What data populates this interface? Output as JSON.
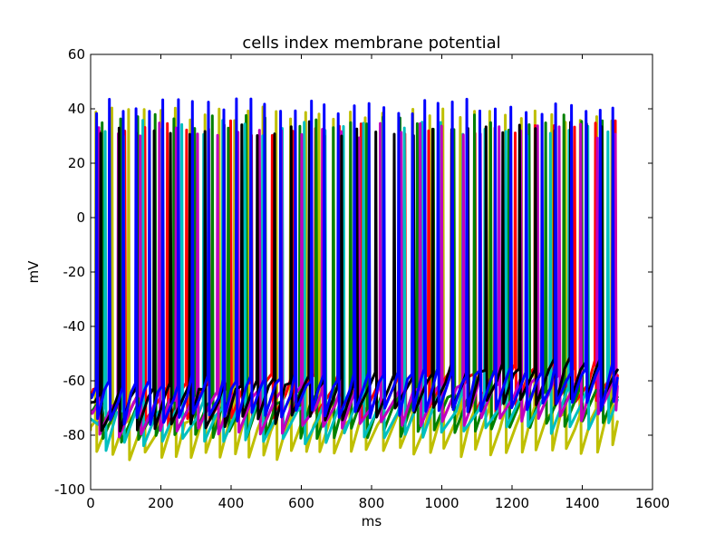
{
  "chart_data": {
    "type": "line",
    "title": "cells index membrane potential",
    "xlabel": "ms",
    "ylabel": "mV",
    "xlim": [
      0,
      1600
    ],
    "ylim": [
      -100,
      60
    ],
    "xticks": [
      0,
      200,
      400,
      600,
      800,
      1000,
      1200,
      1400,
      1600
    ],
    "yticks": [
      -100,
      -80,
      -60,
      -40,
      -20,
      0,
      20,
      40,
      60
    ],
    "grid": false,
    "legend": "none",
    "line_width": 3,
    "colors": [
      "#0000ff",
      "#008000",
      "#ff0000",
      "#00bfbf",
      "#bf00bf",
      "#bfbf00",
      "#000000"
    ],
    "time_range": [
      0,
      1500
    ],
    "resting_range": [
      -84,
      -56
    ],
    "spike_peak_range": [
      28,
      43
    ],
    "series": [
      {
        "color": "#bfbf00",
        "rest": -78,
        "drift": 3,
        "spike_period": 30,
        "spike_phase": 0,
        "peak": 38
      },
      {
        "color": "#ff0000",
        "rest": -66,
        "drift": 8,
        "spike_period": 42,
        "spike_phase": 8,
        "peak": 33
      },
      {
        "color": "#008000",
        "rest": -72,
        "drift": 6,
        "spike_period": 36,
        "spike_phase": 15,
        "peak": 35
      },
      {
        "color": "#00bfbf",
        "rest": -74,
        "drift": 7,
        "spike_period": 40,
        "spike_phase": 22,
        "peak": 33
      },
      {
        "color": "#bf00bf",
        "rest": -71,
        "drift": 9,
        "spike_period": 38,
        "spike_phase": 5,
        "peak": 32
      },
      {
        "color": "#000000",
        "rest": -68,
        "drift": 12,
        "spike_period": 34,
        "spike_phase": 12,
        "peak": 33
      },
      {
        "color": "#0000ff",
        "rest": -65,
        "drift": 6,
        "spike_period": 28,
        "spike_phase": 3,
        "peak": 41
      }
    ]
  }
}
